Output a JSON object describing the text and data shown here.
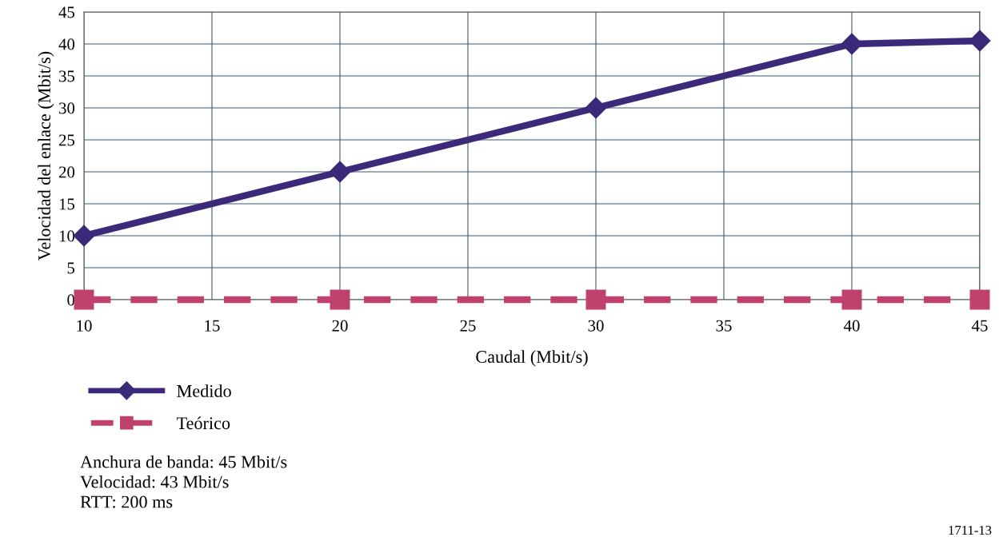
{
  "chart_data": {
    "type": "line",
    "xlabel": "Caudal (Mbit/s)",
    "ylabel": "Velocidad del enlace (Mbit/s)",
    "x": [
      10,
      20,
      30,
      40,
      45
    ],
    "series": [
      {
        "name": "Medido",
        "color": "#3b2a7a",
        "values": [
          10,
          20,
          30,
          40,
          40.5
        ],
        "marker": "diamond",
        "line_style": "solid"
      },
      {
        "name": "Teórico",
        "color": "#c0406e",
        "values": [
          0,
          0,
          0,
          0,
          0
        ],
        "marker": "square",
        "line_style": "dashed"
      }
    ],
    "xlim": [
      10,
      45
    ],
    "xticks": [
      10,
      15,
      20,
      25,
      30,
      35,
      40,
      45
    ],
    "ylim": [
      0,
      45
    ],
    "yticks": [
      0,
      5,
      10,
      15,
      20,
      25,
      30,
      35,
      40,
      45
    ],
    "grid": true,
    "legend": "bottom left",
    "annotations": [
      "Anchura de banda: 45 Mbit/s",
      "Velocidad: 43 Mbit/s",
      "RTT: 200 ms",
      "1711-13"
    ]
  }
}
